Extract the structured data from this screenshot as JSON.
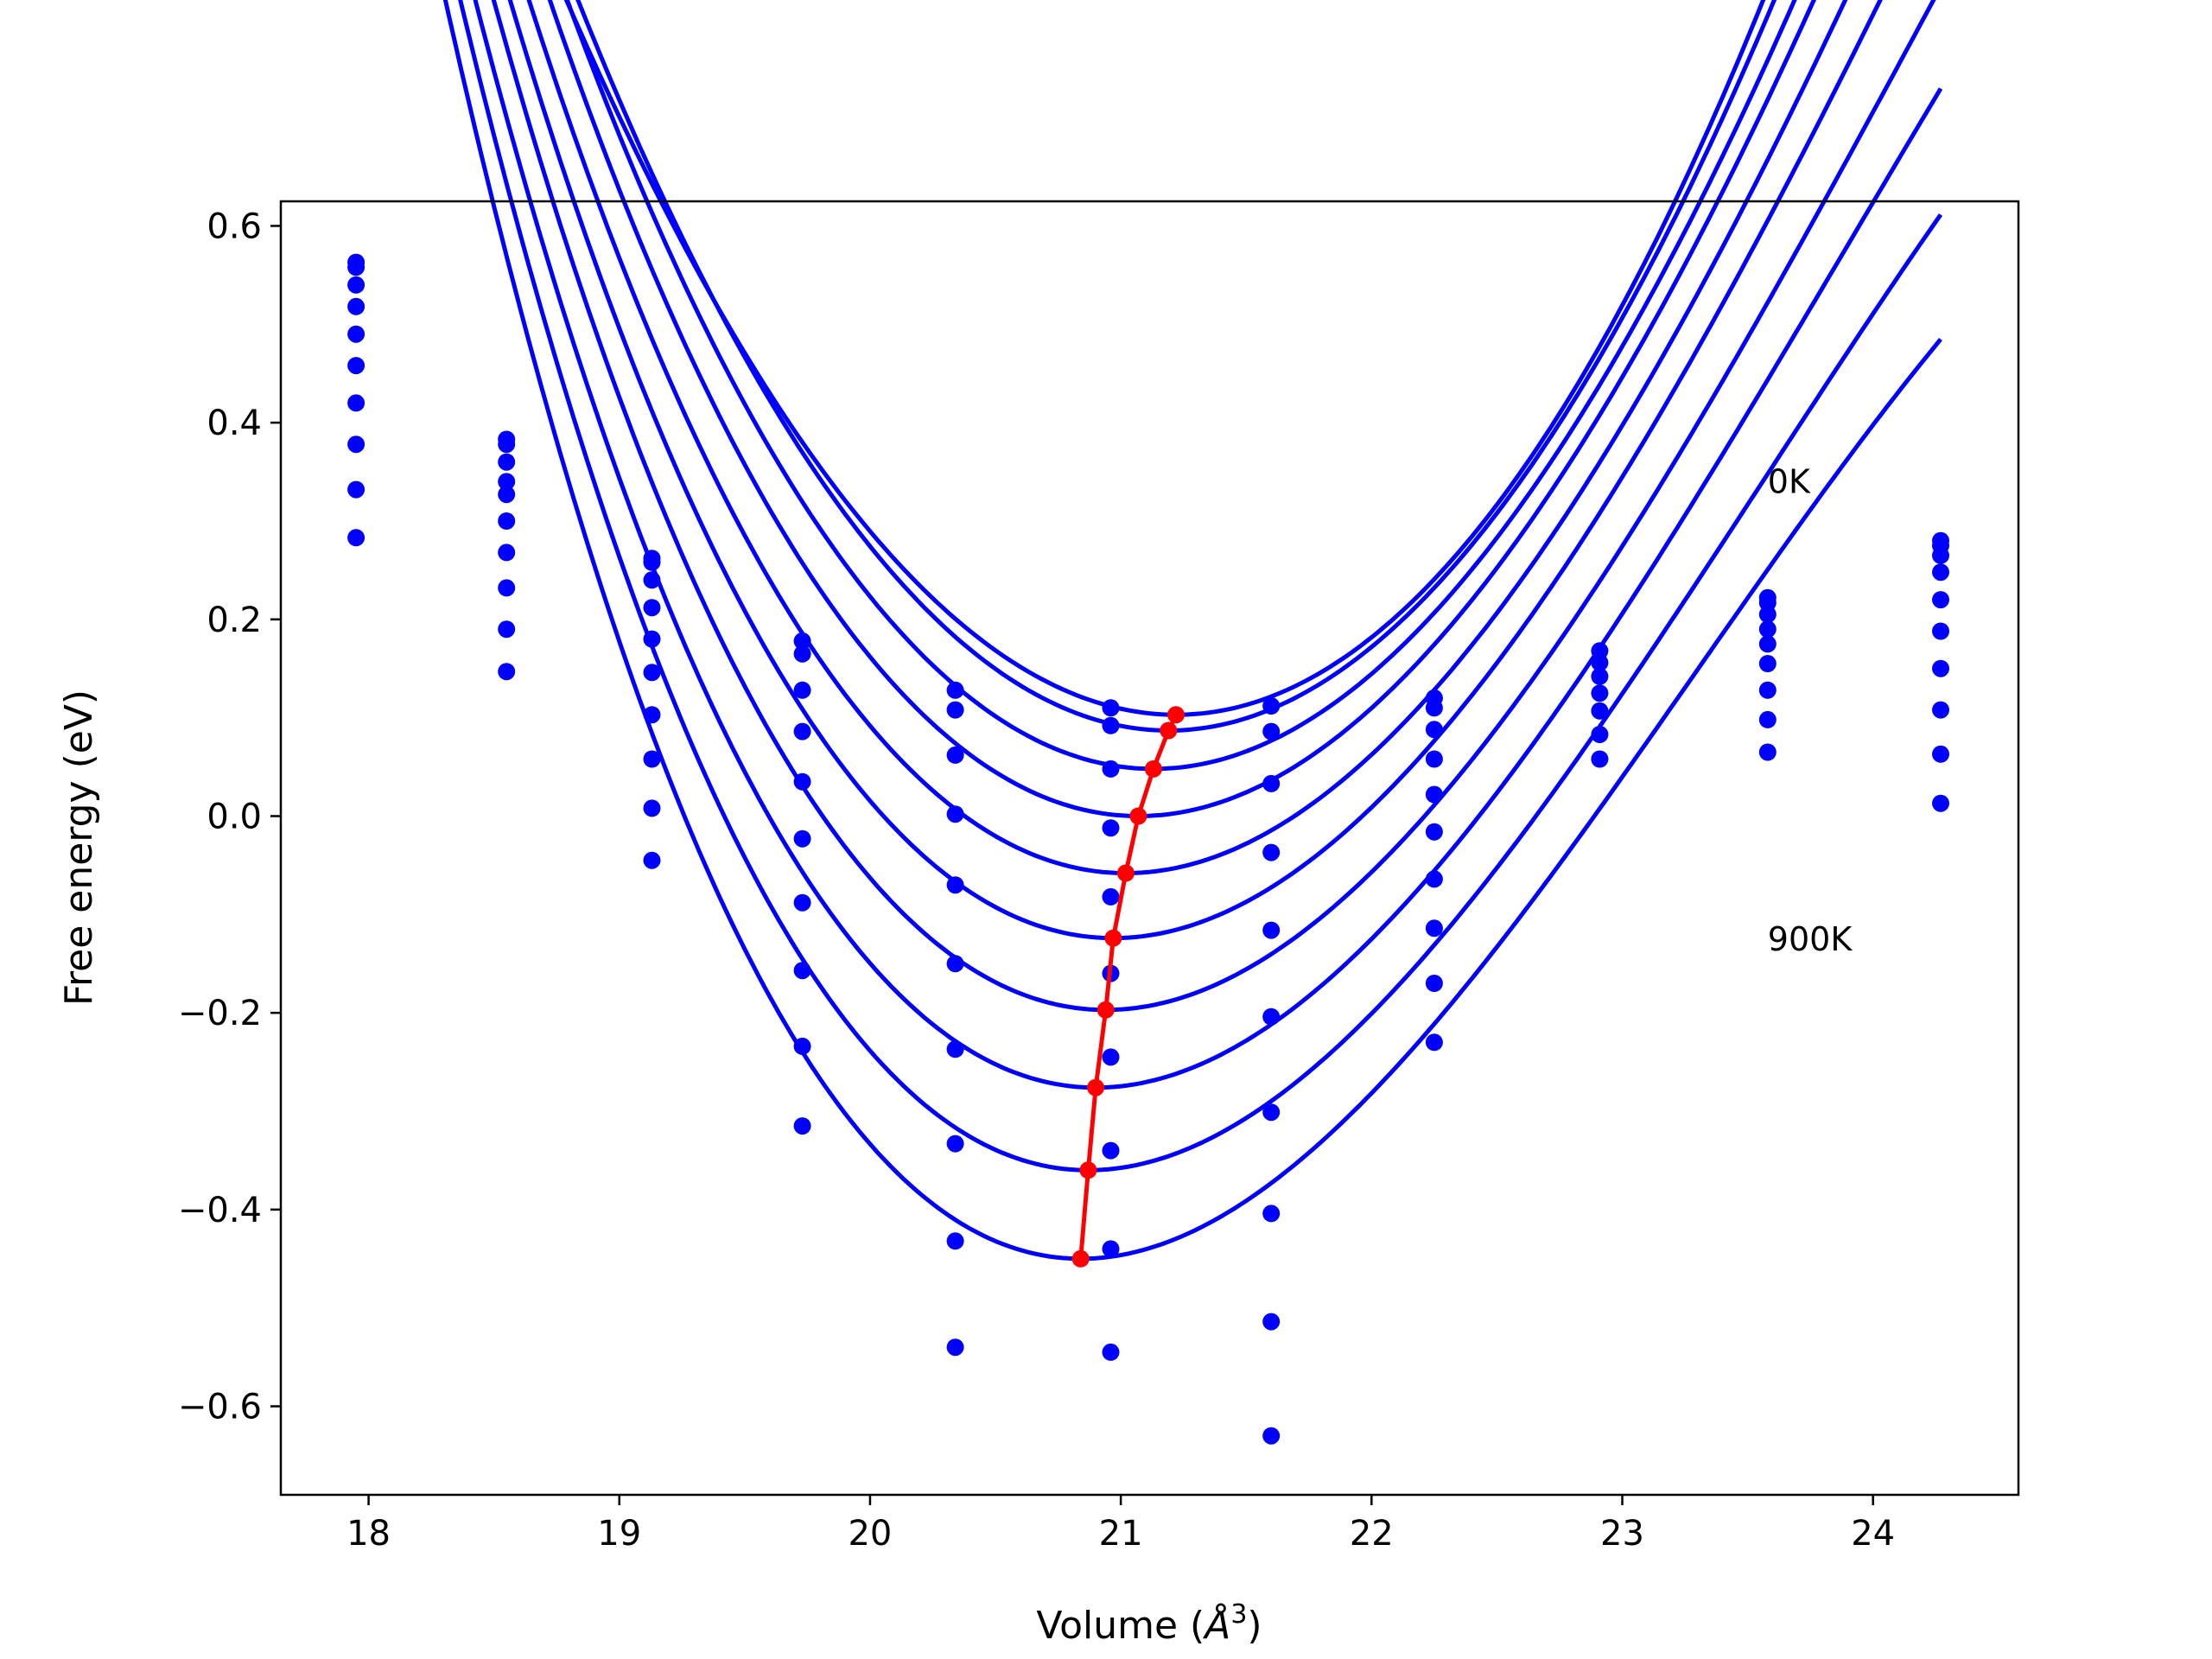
{
  "chart_data": {
    "type": "scatter",
    "title": "",
    "xlabel": "Volume (Å³)",
    "xlabel_main": "Volume (",
    "xlabel_unit": "Å",
    "xlabel_sup": "3",
    "xlabel_close": ")",
    "ylabel": "Free energy (eV)",
    "xlim": [
      17.65,
      24.58
    ],
    "ylim": [
      -0.69,
      0.625
    ],
    "xticks": [
      18,
      19,
      20,
      21,
      22,
      23,
      24
    ],
    "xtick_labels": [
      "18",
      "19",
      "20",
      "21",
      "22",
      "23",
      "24"
    ],
    "yticks": [
      -0.6,
      -0.4,
      -0.2,
      0.0,
      0.2,
      0.4,
      0.6
    ],
    "ytick_labels": [
      "−0.6",
      "−0.4",
      "−0.2",
      "0.0",
      "0.2",
      "0.4",
      "0.6"
    ],
    "grid": false,
    "legend": "none",
    "colors": {
      "curves": "#0000ff",
      "points": "#0000ff",
      "minima": "#ff0000"
    },
    "annotations": [
      {
        "text": "0K",
        "x": 23.58,
        "y": 0.34
      },
      {
        "text": "900K",
        "x": 23.58,
        "y": -0.125
      }
    ],
    "volumes": [
      17.95,
      18.55,
      19.13,
      19.73,
      20.34,
      20.96,
      21.6,
      22.25,
      22.91,
      23.58,
      24.27
    ],
    "points_columns": [
      [
        0.563,
        0.558,
        0.54,
        0.518,
        0.49,
        0.458,
        0.42,
        0.378,
        0.332,
        0.283
      ],
      [
        0.383,
        0.378,
        0.36,
        0.34,
        0.327,
        0.3,
        0.268,
        0.232,
        0.19,
        0.147
      ],
      [
        0.262,
        0.258,
        0.24,
        0.212,
        0.18,
        0.146,
        0.103,
        0.058,
        0.008,
        -0.045
      ],
      [
        0.178,
        0.165,
        0.128,
        0.086,
        0.035,
        -0.023,
        -0.088,
        -0.157,
        -0.234,
        -0.315
      ],
      [
        0.128,
        0.108,
        0.062,
        0.002,
        -0.07,
        -0.15,
        -0.237,
        -0.333,
        -0.432,
        -0.54
      ],
      [
        0.11,
        0.092,
        0.048,
        -0.012,
        -0.082,
        -0.16,
        -0.245,
        -0.34,
        -0.44,
        -0.545
      ],
      [
        0.112,
        0.086,
        0.033,
        -0.037,
        -0.116,
        -0.204,
        -0.301,
        -0.404,
        -0.514,
        -0.63
      ],
      [
        0.12,
        0.11,
        0.088,
        0.058,
        0.022,
        -0.016,
        -0.064,
        -0.114,
        -0.17,
        -0.23
      ],
      [
        0.168,
        0.156,
        0.142,
        0.125,
        0.107,
        0.083,
        0.058
      ],
      [
        0.222,
        0.217,
        0.205,
        0.19,
        0.175,
        0.155,
        0.128,
        0.098,
        0.065
      ],
      [
        0.28,
        0.275,
        0.265,
        0.248,
        0.22,
        0.188,
        0.15,
        0.108,
        0.063,
        0.013
      ]
    ],
    "curves": [
      {
        "v0": 21.22,
        "e0": 0.103,
        "a": 0.1278,
        "b": 0.002
      },
      {
        "v0": 21.19,
        "e0": 0.087,
        "a": 0.1306,
        "b": -0.0014
      },
      {
        "v0": 21.13,
        "e0": 0.048,
        "a": 0.1318,
        "b": -0.0048
      },
      {
        "v0": 21.07,
        "e0": 0.0,
        "a": 0.1337,
        "b": -0.0072
      },
      {
        "v0": 21.02,
        "e0": -0.058,
        "a": 0.1345,
        "b": -0.0093
      },
      {
        "v0": 20.97,
        "e0": -0.124,
        "a": 0.1371,
        "b": -0.0115
      },
      {
        "v0": 20.94,
        "e0": -0.197,
        "a": 0.1391,
        "b": -0.0136
      },
      {
        "v0": 20.9,
        "e0": -0.276,
        "a": 0.142,
        "b": -0.0156
      },
      {
        "v0": 20.87,
        "e0": -0.36,
        "a": 0.1449,
        "b": -0.0179
      },
      {
        "v0": 20.84,
        "e0": -0.45,
        "a": 0.1484,
        "b": -0.0201
      }
    ],
    "minima": {
      "x": [
        21.22,
        21.19,
        21.13,
        21.07,
        21.02,
        20.97,
        20.94,
        20.9,
        20.87,
        20.84
      ],
      "y": [
        0.103,
        0.087,
        0.048,
        0.0,
        -0.058,
        -0.124,
        -0.197,
        -0.276,
        -0.36,
        -0.45
      ]
    }
  }
}
